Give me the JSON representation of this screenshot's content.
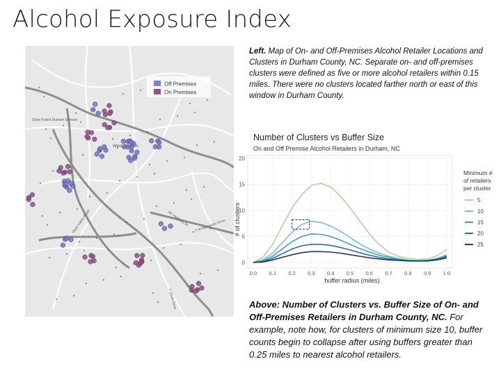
{
  "slide": {
    "title": "Alcohol Exposure Index"
  },
  "map": {
    "legend": [
      {
        "label": "Off Premises",
        "color": "#7b7fd6"
      },
      {
        "label": "On Premises",
        "color": "#9a4f8d"
      }
    ],
    "place_label": "West Durham",
    "place_label2": "Duke Forest Durham Division",
    "road_labels": [
      "Hope Valley Road",
      "NC Highway 54",
      "Davis Drive",
      "T W Alexander Drive"
    ],
    "cluster_colors": {
      "off": "#6f74cf",
      "on": "#8f4c86"
    }
  },
  "caption_left": {
    "lead": "Left.",
    "text": " Map of On- and Off-Premises Alcohol Retailer Locations and Clusters in Durham County, NC. Separate on- and off-premises clusters were defined as five or more alcohol retailers within 0.15 miles. There were no clusters located farther north or east of this window in Durham County."
  },
  "chart_data": {
    "type": "line",
    "title": "Number of Clusters vs Buffer Size",
    "subtitle": "On and Off Premise Alcohol Retailers in Durham, NC",
    "xlabel": "buffer radius (miles)",
    "ylabel": "# of clusters",
    "xlim": [
      0.0,
      1.0
    ],
    "ylim": [
      0,
      20
    ],
    "x_ticks": [
      "0.0",
      "0.1",
      "0.2",
      "0.3",
      "0.4",
      "0.5",
      "0.6",
      "0.7",
      "0.8",
      "0.9",
      "1.0"
    ],
    "y_ticks": [
      "0",
      "5",
      "10",
      "15",
      "20"
    ],
    "legend_title": "Minimum # of retailers per cluster",
    "legend_position": "right",
    "x": [
      0.0,
      0.05,
      0.1,
      0.15,
      0.2,
      0.25,
      0.3,
      0.35,
      0.4,
      0.45,
      0.5,
      0.55,
      0.6,
      0.65,
      0.7,
      0.75,
      0.8,
      0.85,
      0.9,
      0.95,
      1.0
    ],
    "series": [
      {
        "name": "5",
        "color": "#a8d89a",
        "values": [
          0,
          1.0,
          3.5,
          7.0,
          10.5,
          13.0,
          14.8,
          15.2,
          14.5,
          12.8,
          10.5,
          8.0,
          5.5,
          3.5,
          2.0,
          1.2,
          0.8,
          0.6,
          0.7,
          1.3,
          2.5
        ]
      },
      {
        "name": "10",
        "color": "#6fc7c0",
        "values": [
          0,
          0.5,
          1.8,
          3.8,
          5.8,
          7.3,
          7.9,
          7.7,
          7.0,
          6.0,
          4.8,
          3.6,
          2.6,
          1.8,
          1.2,
          0.8,
          0.5,
          0.4,
          0.4,
          0.8,
          1.5
        ]
      },
      {
        "name": "15",
        "color": "#3fa1b8",
        "values": [
          0,
          0.3,
          1.2,
          2.6,
          4.0,
          5.0,
          5.5,
          5.4,
          5.0,
          4.3,
          3.5,
          2.7,
          2.0,
          1.4,
          1.0,
          0.6,
          0.4,
          0.3,
          0.4,
          0.7,
          1.3
        ]
      },
      {
        "name": "20",
        "color": "#2b6d9e",
        "values": [
          0,
          0.2,
          0.8,
          1.7,
          2.6,
          3.2,
          3.5,
          3.5,
          3.3,
          2.9,
          2.4,
          1.9,
          1.4,
          1.0,
          0.7,
          0.5,
          0.3,
          0.3,
          0.4,
          0.6,
          1.1
        ]
      },
      {
        "name": "25",
        "color": "#2a2e6b",
        "values": [
          0,
          0.1,
          0.5,
          1.0,
          1.5,
          1.9,
          2.1,
          2.1,
          2.0,
          1.8,
          1.5,
          1.2,
          0.9,
          0.7,
          0.5,
          0.4,
          0.3,
          0.3,
          0.3,
          0.5,
          0.9
        ]
      }
    ],
    "highlight_box": {
      "x": [
        0.2,
        0.29
      ],
      "y": [
        6.4,
        8.2
      ]
    }
  },
  "caption_bottom": {
    "lead": "Above: Number of Clusters vs. Buffer Size of On- and Off-Premises Retailers in Durham County, NC.",
    "text": " For example, note how, for clusters of minimum size 10, buffer counts begin to collapse after using buffers greater than 0.25 miles to nearest alcohol retailers."
  }
}
